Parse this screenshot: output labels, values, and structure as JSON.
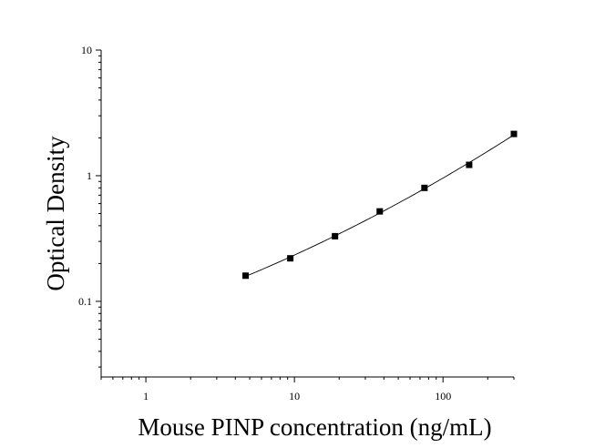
{
  "chart_data": {
    "type": "scatter",
    "title": "",
    "xlabel": "Mouse PINP concentration (ng/mL)",
    "ylabel": "Optical Density",
    "x_scale": "log",
    "y_scale": "log",
    "xlim": [
      0.5,
      300
    ],
    "ylim": [
      0.025,
      10
    ],
    "x_ticks": [
      1,
      10,
      100
    ],
    "x_tick_labels": [
      "1",
      "10",
      "100"
    ],
    "y_ticks": [
      0.1,
      1,
      10
    ],
    "y_tick_labels": [
      "0.1",
      "1",
      "10"
    ],
    "grid": false,
    "legend": "none",
    "series": [
      {
        "values": [
          {
            "x": 4.69,
            "y": 0.16
          },
          {
            "x": 9.38,
            "y": 0.22
          },
          {
            "x": 18.75,
            "y": 0.33
          },
          {
            "x": 37.5,
            "y": 0.52
          },
          {
            "x": 75,
            "y": 0.8
          },
          {
            "x": 150,
            "y": 1.22
          },
          {
            "x": 300,
            "y": 2.15
          }
        ],
        "color": "#000000",
        "marker": "square",
        "fit_line": true
      }
    ]
  }
}
